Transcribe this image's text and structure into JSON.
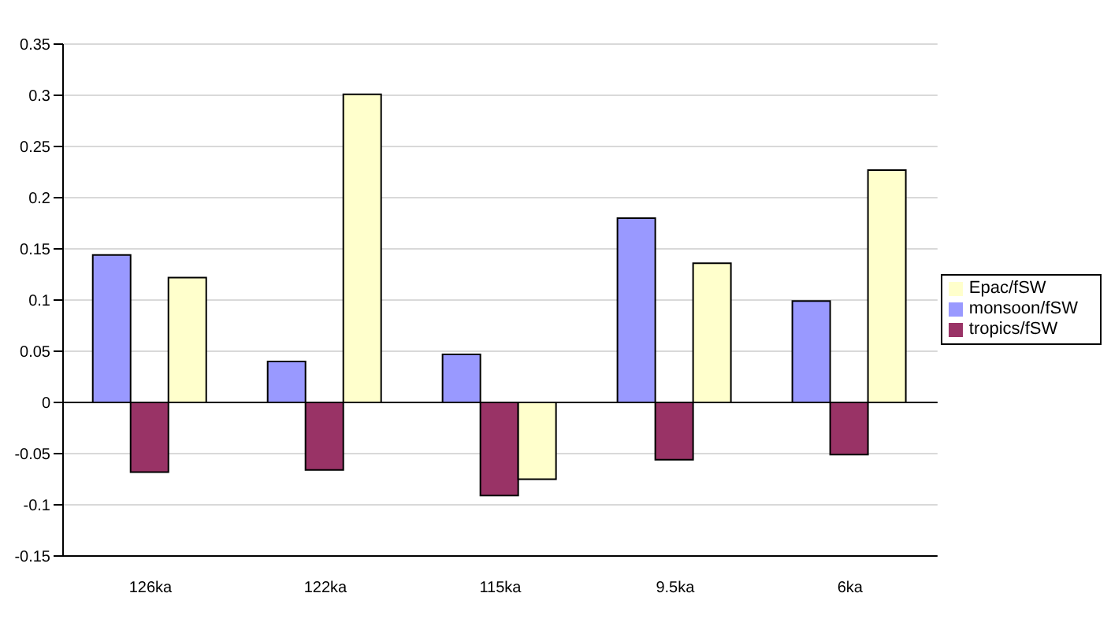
{
  "chart_data": {
    "type": "bar",
    "categories": [
      "126ka",
      "122ka",
      "115ka",
      "9.5ka",
      "6ka"
    ],
    "series": [
      {
        "name": "monsoon/fSW",
        "color": "#9999ff",
        "values": [
          0.144,
          0.04,
          0.047,
          0.18,
          0.099
        ]
      },
      {
        "name": "tropics/fSW",
        "color": "#993366",
        "values": [
          -0.068,
          -0.066,
          -0.091,
          -0.056,
          -0.051
        ]
      },
      {
        "name": "Epac/fSW",
        "color": "#ffffcc",
        "values": [
          0.122,
          0.301,
          -0.075,
          0.136,
          0.227
        ]
      }
    ],
    "ylim": [
      -0.15,
      0.35
    ],
    "yticks": [
      -0.15,
      -0.1,
      -0.05,
      0,
      0.05,
      0.1,
      0.15,
      0.2,
      0.25,
      0.3,
      0.35
    ],
    "grid": "y",
    "legend": "right"
  }
}
